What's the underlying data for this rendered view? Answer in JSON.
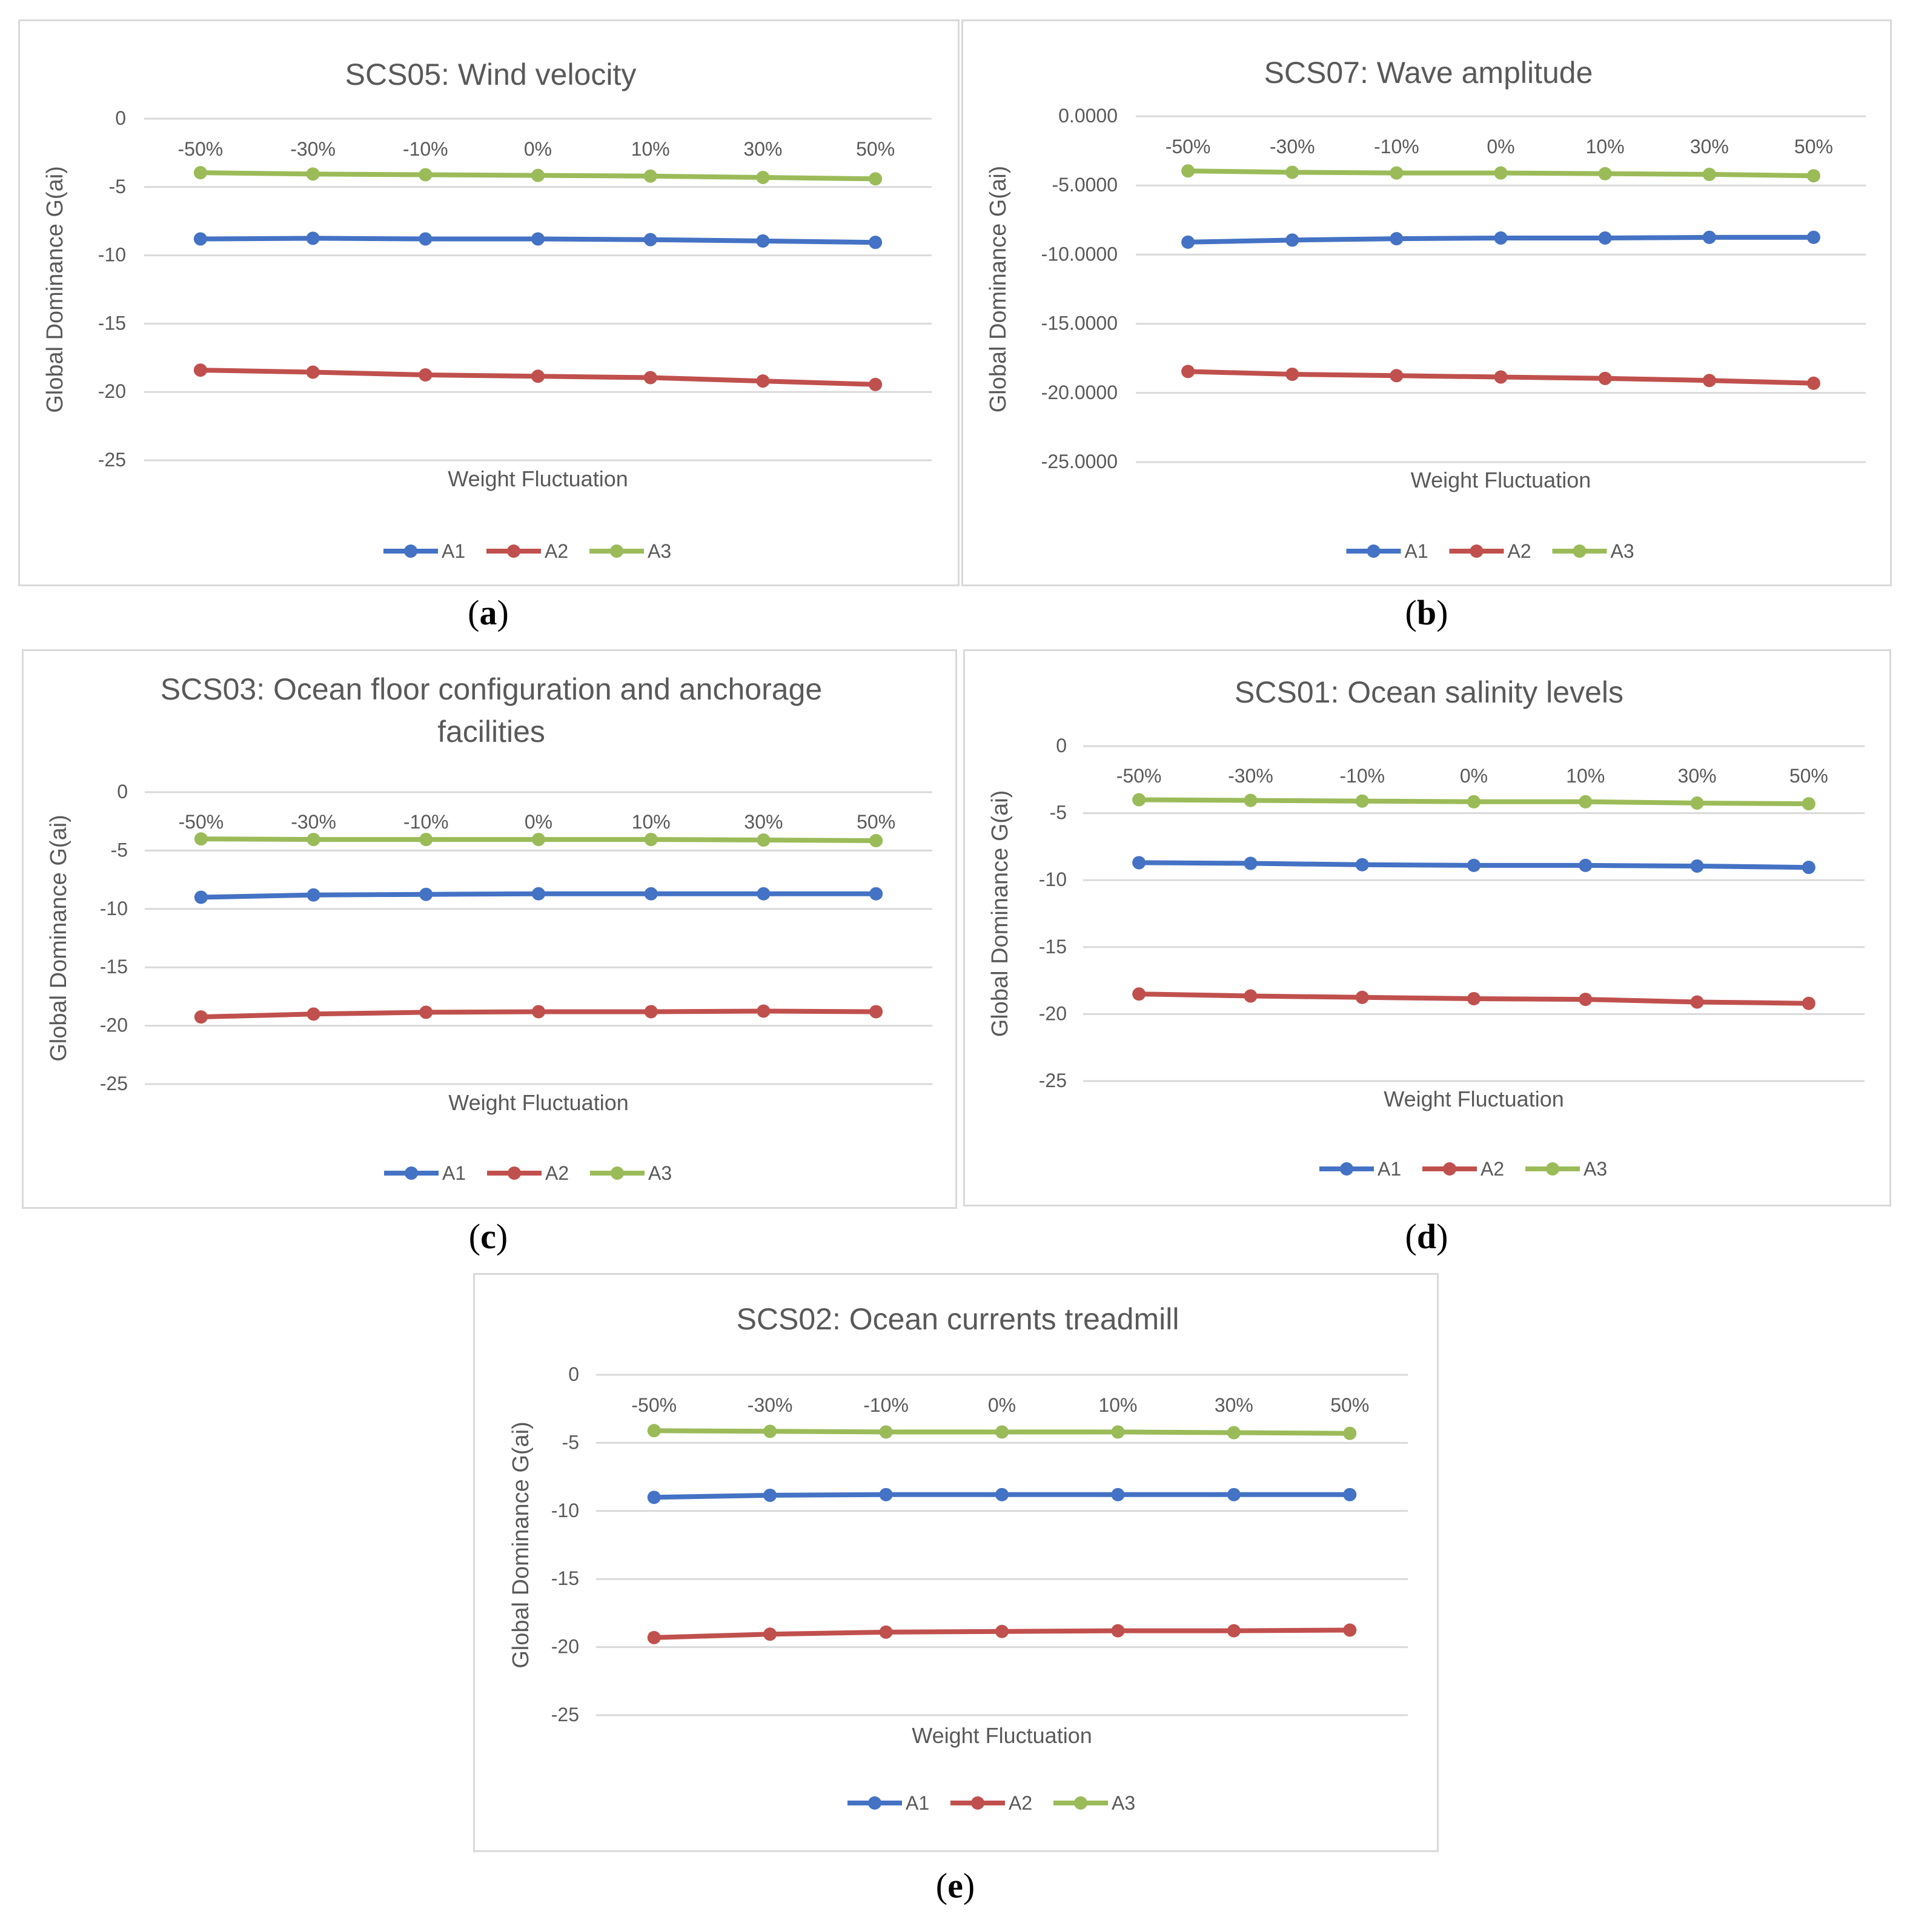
{
  "chart_data": [
    {
      "type": "line",
      "panel_label": "a",
      "title": "SCS05: Wind velocity",
      "xlabel": "Weight Fluctuation",
      "ylabel": "Global Dominance G(ai)",
      "categories": [
        "-50%",
        "-30%",
        "-10%",
        "0%",
        "10%",
        "30%",
        "50%"
      ],
      "ylim": [
        -25,
        0
      ],
      "yticks": [
        "0",
        "-5",
        "-10",
        "-15",
        "-20",
        "-25"
      ],
      "grid": true,
      "legend_position": "bottom",
      "series": [
        {
          "name": "A1",
          "color": "#4472c4",
          "values": [
            -8.8,
            -8.75,
            -8.8,
            -8.8,
            -8.85,
            -8.95,
            -9.05
          ]
        },
        {
          "name": "A2",
          "color": "#c0504d",
          "values": [
            -18.4,
            -18.55,
            -18.75,
            -18.85,
            -18.95,
            -19.2,
            -19.45
          ]
        },
        {
          "name": "A3",
          "color": "#9bbb59",
          "values": [
            -3.95,
            -4.05,
            -4.1,
            -4.15,
            -4.2,
            -4.3,
            -4.4
          ]
        }
      ]
    },
    {
      "type": "line",
      "panel_label": "b",
      "title": "SCS07: Wave amplitude",
      "xlabel": "Weight Fluctuation",
      "ylabel": "Global Dominance G(ai)",
      "categories": [
        "-50%",
        "-30%",
        "-10%",
        "0%",
        "10%",
        "30%",
        "50%"
      ],
      "ylim": [
        -25,
        0
      ],
      "yticks": [
        "0.0000",
        "-5.0000",
        "-10.0000",
        "-15.0000",
        "-20.0000",
        "-25.0000"
      ],
      "grid": true,
      "legend_position": "bottom",
      "series": [
        {
          "name": "A1",
          "color": "#4472c4",
          "values": [
            -9.1,
            -8.95,
            -8.85,
            -8.8,
            -8.8,
            -8.75,
            -8.75
          ]
        },
        {
          "name": "A2",
          "color": "#c0504d",
          "values": [
            -18.45,
            -18.65,
            -18.75,
            -18.85,
            -18.95,
            -19.1,
            -19.3
          ]
        },
        {
          "name": "A3",
          "color": "#9bbb59",
          "values": [
            -3.95,
            -4.05,
            -4.1,
            -4.1,
            -4.15,
            -4.2,
            -4.3
          ]
        }
      ]
    },
    {
      "type": "line",
      "panel_label": "c",
      "title": "SCS03: Ocean floor configuration and anchorage facilities",
      "xlabel": "Weight Fluctuation",
      "ylabel": "Global Dominance G(ai)",
      "categories": [
        "-50%",
        "-30%",
        "-10%",
        "0%",
        "10%",
        "30%",
        "50%"
      ],
      "ylim": [
        -25,
        0
      ],
      "yticks": [
        "0",
        "-5",
        "-10",
        "-15",
        "-20",
        "-25"
      ],
      "grid": true,
      "legend_position": "bottom",
      "series": [
        {
          "name": "A1",
          "color": "#4472c4",
          "values": [
            -9.0,
            -8.8,
            -8.75,
            -8.7,
            -8.7,
            -8.7,
            -8.7
          ]
        },
        {
          "name": "A2",
          "color": "#c0504d",
          "values": [
            -19.25,
            -19.0,
            -18.85,
            -18.8,
            -18.8,
            -18.75,
            -18.8
          ]
        },
        {
          "name": "A3",
          "color": "#9bbb59",
          "values": [
            -4.0,
            -4.05,
            -4.05,
            -4.05,
            -4.05,
            -4.1,
            -4.15
          ]
        }
      ]
    },
    {
      "type": "line",
      "panel_label": "d",
      "title": "SCS01: Ocean salinity levels",
      "xlabel": "Weight Fluctuation",
      "ylabel": "Global Dominance G(ai)",
      "categories": [
        "-50%",
        "-30%",
        "-10%",
        "0%",
        "10%",
        "30%",
        "50%"
      ],
      "ylim": [
        -25,
        0
      ],
      "yticks": [
        "0",
        "-5",
        "-10",
        "-15",
        "-20",
        "-25"
      ],
      "grid": true,
      "legend_position": "bottom",
      "series": [
        {
          "name": "A1",
          "color": "#4472c4",
          "values": [
            -8.7,
            -8.75,
            -8.85,
            -8.9,
            -8.9,
            -8.95,
            -9.05
          ]
        },
        {
          "name": "A2",
          "color": "#c0504d",
          "values": [
            -18.5,
            -18.65,
            -18.75,
            -18.85,
            -18.9,
            -19.1,
            -19.2
          ]
        },
        {
          "name": "A3",
          "color": "#9bbb59",
          "values": [
            -4.0,
            -4.05,
            -4.1,
            -4.15,
            -4.15,
            -4.25,
            -4.3
          ]
        }
      ]
    },
    {
      "type": "line",
      "panel_label": "e",
      "title": "SCS02: Ocean currents treadmill",
      "xlabel": "Weight Fluctuation",
      "ylabel": "Global Dominance G(ai)",
      "categories": [
        "-50%",
        "-30%",
        "-10%",
        "0%",
        "10%",
        "30%",
        "50%"
      ],
      "ylim": [
        -25,
        0
      ],
      "yticks": [
        "0",
        "-5",
        "-10",
        "-15",
        "-20",
        "-25"
      ],
      "grid": true,
      "legend_position": "bottom",
      "series": [
        {
          "name": "A1",
          "color": "#4472c4",
          "values": [
            -9.0,
            -8.85,
            -8.8,
            -8.8,
            -8.8,
            -8.8,
            -8.8
          ]
        },
        {
          "name": "A2",
          "color": "#c0504d",
          "values": [
            -19.3,
            -19.05,
            -18.9,
            -18.85,
            -18.8,
            -18.8,
            -18.75
          ]
        },
        {
          "name": "A3",
          "color": "#9bbb59",
          "values": [
            -4.1,
            -4.15,
            -4.2,
            -4.2,
            -4.2,
            -4.25,
            -4.3
          ]
        }
      ]
    }
  ]
}
